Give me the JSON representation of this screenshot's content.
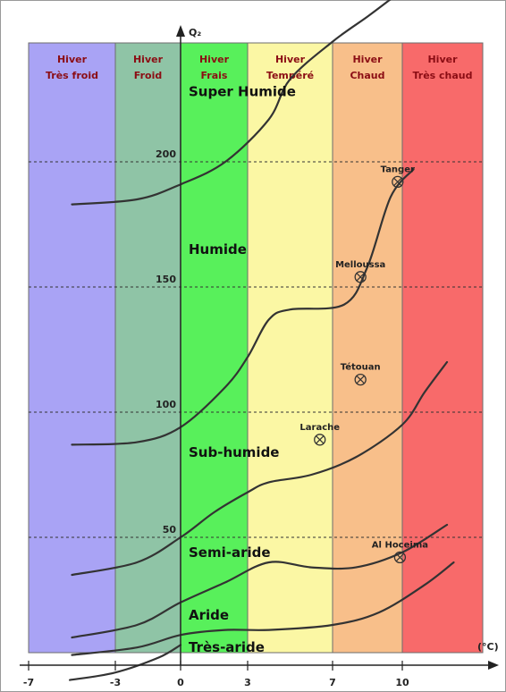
{
  "chart_data": {
    "type": "line",
    "title": "",
    "y_axis_label": "Q₂",
    "x_axis_label": "(°C)",
    "x_ticks": [
      "-7",
      "-3",
      "0",
      "3",
      "7",
      "10"
    ],
    "y_ticks": [
      "50",
      "100",
      "150",
      "200"
    ],
    "xlim": [
      -7,
      14
    ],
    "ylim": [
      0,
      265
    ],
    "grid_y": [
      50,
      100,
      150,
      200
    ],
    "zones": [
      {
        "line1": "Hiver",
        "line2": "Très froid",
        "x0": -7,
        "x1": -3,
        "color": "#a9a3f5"
      },
      {
        "line1": "Hiver",
        "line2": "Froid",
        "x0": -3,
        "x1": 0,
        "color": "#8fc4a6"
      },
      {
        "line1": "Hiver",
        "line2": "Frais",
        "x0": 0,
        "x1": 3,
        "color": "#58f05b"
      },
      {
        "line1": "Hiver",
        "line2": "Tempéré",
        "x0": 3,
        "x1": 7,
        "color": "#fbf7a4"
      },
      {
        "line1": "Hiver",
        "line2": "Chaud",
        "x0": 7,
        "x1": 10,
        "color": "#f8bf8a"
      },
      {
        "line1": "Hiver",
        "line2": "Très chaud",
        "x0": 10,
        "x1": 13.6,
        "color": "#f86a6a"
      }
    ],
    "climate_zones": [
      {
        "name": "Super Humide",
        "x": 0.2,
        "y": 228
      },
      {
        "name": "Humide",
        "x": 0.2,
        "y": 165
      },
      {
        "name": "Sub-humide",
        "x": 0.2,
        "y": 84
      },
      {
        "name": "Semi-aride",
        "x": 0.2,
        "y": 44
      },
      {
        "name": "Aride",
        "x": 0.2,
        "y": 19
      },
      {
        "name": "Très-aride",
        "x": 0.2,
        "y": 6
      }
    ],
    "boundaries": [
      {
        "points": [
          [
            -5,
            183
          ],
          [
            -2,
            185
          ],
          [
            0,
            191
          ],
          [
            2,
            200
          ],
          [
            4,
            217
          ],
          [
            5,
            233
          ],
          [
            7,
            248
          ],
          [
            8.5,
            258
          ],
          [
            9.5,
            265
          ]
        ]
      },
      {
        "points": [
          [
            -5,
            87
          ],
          [
            -2,
            88
          ],
          [
            0,
            94
          ],
          [
            2,
            110
          ],
          [
            3,
            122
          ],
          [
            4,
            137
          ],
          [
            5,
            141
          ],
          [
            7.5,
            143
          ],
          [
            8.5,
            158
          ],
          [
            9.5,
            186
          ],
          [
            10.5,
            197
          ]
        ]
      },
      {
        "points": [
          [
            -5,
            35
          ],
          [
            -2,
            40
          ],
          [
            0,
            50
          ],
          [
            1.5,
            60
          ],
          [
            3,
            68
          ],
          [
            4,
            72
          ],
          [
            6,
            75
          ],
          [
            8,
            82
          ],
          [
            10,
            95
          ],
          [
            11,
            108
          ],
          [
            12,
            120
          ]
        ]
      },
      {
        "points": [
          [
            -5,
            10
          ],
          [
            -2,
            15
          ],
          [
            0,
            24
          ],
          [
            2,
            32
          ],
          [
            4,
            40
          ],
          [
            6,
            38
          ],
          [
            8,
            38
          ],
          [
            10,
            44
          ],
          [
            12,
            55
          ]
        ]
      },
      {
        "points": [
          [
            -5,
            3
          ],
          [
            -2,
            6
          ],
          [
            0,
            11
          ],
          [
            2,
            13
          ],
          [
            4,
            13
          ],
          [
            7,
            15
          ],
          [
            9,
            20
          ],
          [
            11,
            31
          ],
          [
            12.3,
            40
          ]
        ]
      },
      {
        "points": [
          [
            -5.1,
            -7
          ],
          [
            -3,
            -4
          ],
          [
            -1,
            2
          ],
          [
            0,
            7
          ]
        ]
      }
    ],
    "stations": [
      {
        "name": "Tanger",
        "x": 9.8,
        "y": 192
      },
      {
        "name": "Melloussa",
        "x": 8.2,
        "y": 154
      },
      {
        "name": "Tétouan",
        "x": 8.2,
        "y": 113
      },
      {
        "name": "Larache",
        "x": 6.4,
        "y": 89
      },
      {
        "name": "Al Hoceima",
        "x": 9.9,
        "y": 42
      }
    ]
  }
}
